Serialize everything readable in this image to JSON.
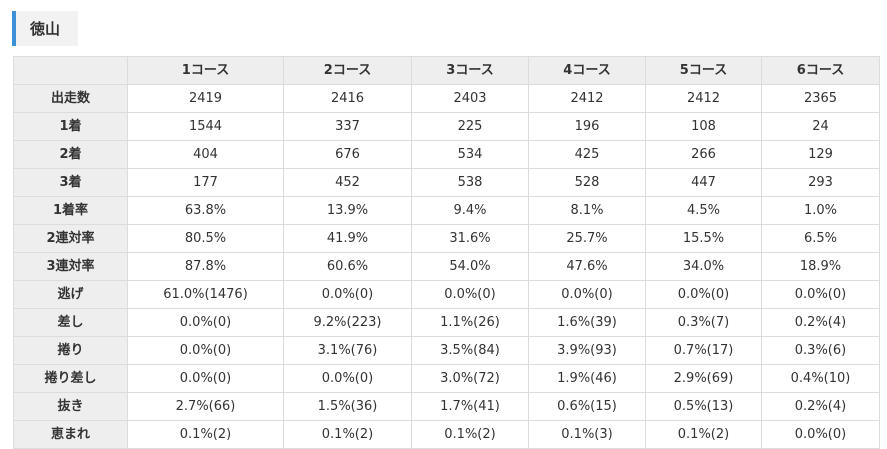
{
  "section_title": "徳山",
  "table": {
    "columns": [
      "",
      "1コース",
      "2コース",
      "3コース",
      "4コース",
      "5コース",
      "6コース"
    ],
    "rows": [
      {
        "label": "出走数",
        "values": [
          "2419",
          "2416",
          "2403",
          "2412",
          "2412",
          "2365"
        ]
      },
      {
        "label": "1着",
        "values": [
          "1544",
          "337",
          "225",
          "196",
          "108",
          "24"
        ]
      },
      {
        "label": "2着",
        "values": [
          "404",
          "676",
          "534",
          "425",
          "266",
          "129"
        ]
      },
      {
        "label": "3着",
        "values": [
          "177",
          "452",
          "538",
          "528",
          "447",
          "293"
        ]
      },
      {
        "label": "1着率",
        "values": [
          "63.8%",
          "13.9%",
          "9.4%",
          "8.1%",
          "4.5%",
          "1.0%"
        ]
      },
      {
        "label": "2連対率",
        "values": [
          "80.5%",
          "41.9%",
          "31.6%",
          "25.7%",
          "15.5%",
          "6.5%"
        ]
      },
      {
        "label": "3連対率",
        "values": [
          "87.8%",
          "60.6%",
          "54.0%",
          "47.6%",
          "34.0%",
          "18.9%"
        ]
      },
      {
        "label": "逃げ",
        "values": [
          "61.0%(1476)",
          "0.0%(0)",
          "0.0%(0)",
          "0.0%(0)",
          "0.0%(0)",
          "0.0%(0)"
        ]
      },
      {
        "label": "差し",
        "values": [
          "0.0%(0)",
          "9.2%(223)",
          "1.1%(26)",
          "1.6%(39)",
          "0.3%(7)",
          "0.2%(4)"
        ]
      },
      {
        "label": "捲り",
        "values": [
          "0.0%(0)",
          "3.1%(76)",
          "3.5%(84)",
          "3.9%(93)",
          "0.7%(17)",
          "0.3%(6)"
        ]
      },
      {
        "label": "捲り差し",
        "values": [
          "0.0%(0)",
          "0.0%(0)",
          "3.0%(72)",
          "1.9%(46)",
          "2.9%(69)",
          "0.4%(10)"
        ]
      },
      {
        "label": "抜き",
        "values": [
          "2.7%(66)",
          "1.5%(36)",
          "1.7%(41)",
          "0.6%(15)",
          "0.5%(13)",
          "0.2%(4)"
        ]
      },
      {
        "label": "恵まれ",
        "values": [
          "0.1%(2)",
          "0.1%(2)",
          "0.1%(2)",
          "0.1%(3)",
          "0.1%(2)",
          "0.0%(0)"
        ]
      }
    ]
  },
  "colors": {
    "accent_bar": "#3d8fd6",
    "header_bg": "#eeeeee",
    "border": "#dcdcdc"
  }
}
